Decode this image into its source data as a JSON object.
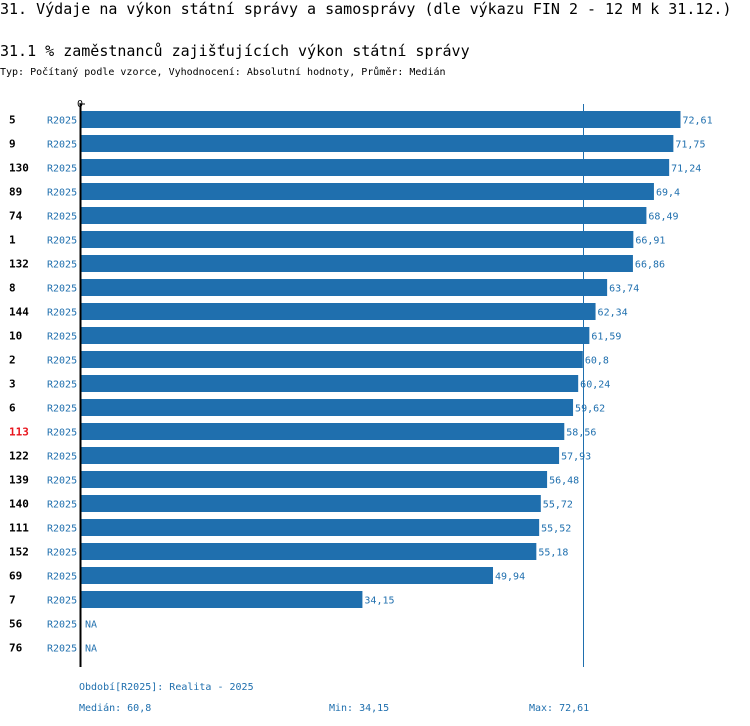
{
  "header": {
    "title": "31. Výdaje na výkon státní správy a samosprávy (dle výkazu FIN 2 - 12 M k 31.12.)",
    "subtitle": "31.1 % zaměstnanců zajišťujících výkon státní správy",
    "meta": "Typ: Počítaný podle vzorce, Vyhodnocení: Absolutní hodnoty, Průměr: Medián"
  },
  "colors": {
    "bar": "#1f6fae",
    "text": "#000000",
    "highlight": "#e8141c",
    "label": "#1f6fae"
  },
  "chart_data": {
    "type": "bar",
    "orientation": "horizontal",
    "axis_zero_label": "0",
    "xlim": [
      0,
      76
    ],
    "median": 60.8,
    "highlight_id": "113",
    "categories": [
      "5",
      "9",
      "130",
      "89",
      "74",
      "1",
      "132",
      "8",
      "144",
      "10",
      "2",
      "3",
      "6",
      "113",
      "122",
      "139",
      "140",
      "111",
      "152",
      "69",
      "7",
      "56",
      "76"
    ],
    "periods": [
      "R2025",
      "R2025",
      "R2025",
      "R2025",
      "R2025",
      "R2025",
      "R2025",
      "R2025",
      "R2025",
      "R2025",
      "R2025",
      "R2025",
      "R2025",
      "R2025",
      "R2025",
      "R2025",
      "R2025",
      "R2025",
      "R2025",
      "R2025",
      "R2025",
      "R2025",
      "R2025"
    ],
    "values": [
      72.61,
      71.75,
      71.24,
      69.4,
      68.49,
      66.91,
      66.86,
      63.74,
      62.34,
      61.59,
      60.8,
      60.24,
      59.62,
      58.56,
      57.93,
      56.48,
      55.72,
      55.52,
      55.18,
      49.94,
      34.15,
      null,
      null
    ],
    "value_labels": [
      "72,61",
      "71,75",
      "71,24",
      "69,4",
      "68,49",
      "66,91",
      "66,86",
      "63,74",
      "62,34",
      "61,59",
      "60,8",
      "60,24",
      "59,62",
      "58,56",
      "57,93",
      "56,48",
      "55,72",
      "55,52",
      "55,18",
      "49,94",
      "34,15",
      "NA",
      "NA"
    ]
  },
  "footer": {
    "period": "Období[R2025]: Realita - 2025",
    "median": "Medián: 60,8",
    "min": "Min: 34,15",
    "max": "Max: 72,61"
  }
}
